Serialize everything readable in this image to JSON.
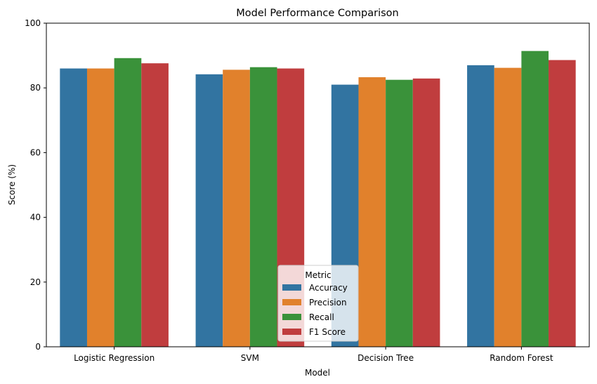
{
  "chart_data": {
    "type": "bar",
    "title": "Model Performance Comparison",
    "xlabel": "Model",
    "ylabel": "Score (%)",
    "ylim": [
      0,
      100
    ],
    "yticks": [
      0,
      20,
      40,
      60,
      80,
      100
    ],
    "grid": false,
    "categories": [
      "Logistic Regression",
      "SVM",
      "Decision Tree",
      "Random Forest"
    ],
    "legend": {
      "title": "Metric",
      "placement": "lower-center"
    },
    "series": [
      {
        "name": "Accuracy",
        "color": "#3274a1",
        "values": [
          86.0,
          84.2,
          81.0,
          87.0
        ]
      },
      {
        "name": "Precision",
        "color": "#e1812c",
        "values": [
          86.0,
          85.6,
          83.3,
          86.2
        ]
      },
      {
        "name": "Recall",
        "color": "#3a923a",
        "values": [
          89.2,
          86.4,
          82.5,
          91.4
        ]
      },
      {
        "name": "F1 Score",
        "color": "#c03d3e",
        "values": [
          87.6,
          86.0,
          82.9,
          88.6
        ]
      }
    ]
  }
}
